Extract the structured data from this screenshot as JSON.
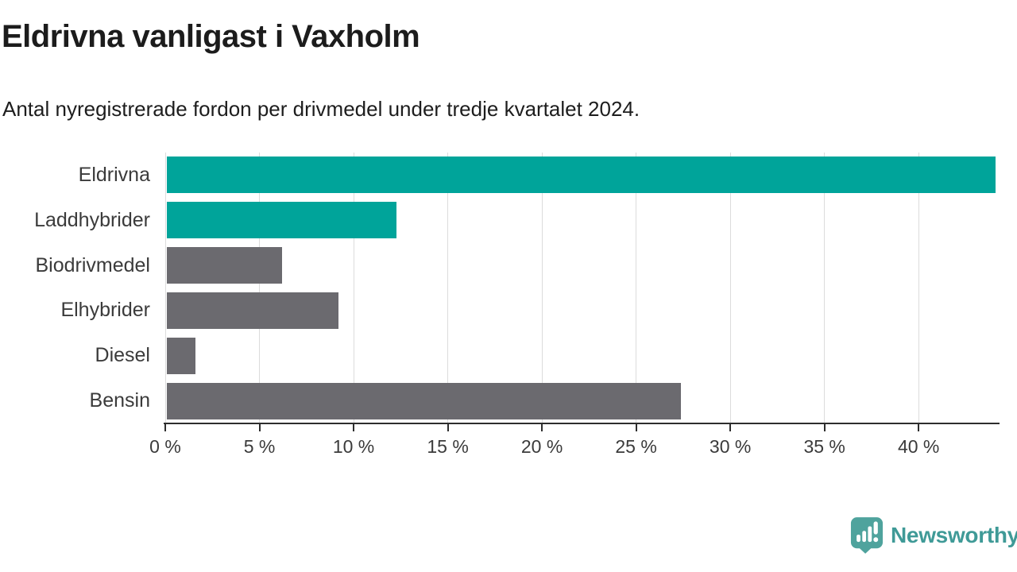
{
  "header": {
    "title": "Eldrivna vanligast i Vaxholm",
    "subtitle": "Antal nyregistrerade fordon per drivmedel under tredje kvartalet 2024."
  },
  "chart_data": {
    "type": "bar",
    "orientation": "horizontal",
    "title": "Eldrivna vanligast i Vaxholm",
    "subtitle": "Antal nyregistrerade fordon per drivmedel under tredje kvartalet 2024.",
    "categories": [
      "Eldrivna",
      "Laddhybrider",
      "Biodrivmedel",
      "Elhybrider",
      "Diesel",
      "Bensin"
    ],
    "values": [
      44.0,
      12.2,
      6.1,
      9.1,
      1.5,
      27.3
    ],
    "unit": "%",
    "xlim": [
      0,
      44
    ],
    "xticks": [
      0,
      5,
      10,
      15,
      20,
      25,
      30,
      35,
      40
    ],
    "xtick_labels": [
      "0 %",
      "5 %",
      "10 %",
      "15 %",
      "20 %",
      "25 %",
      "30 %",
      "35 %",
      "40 %"
    ],
    "grid": true,
    "legend": "none",
    "colors": {
      "highlight": "#00A49A",
      "default": "#6B6A6F",
      "gridline": "#dcdcdc",
      "axis": "#2d2d2d"
    },
    "bar_colors": [
      "#00A49A",
      "#00A49A",
      "#6B6A6F",
      "#6B6A6F",
      "#6B6A6F",
      "#6B6A6F"
    ]
  },
  "footer": {
    "brand": "Newsworthy",
    "brand_color": "#3f9a97",
    "icon": "speech-bubble-bar-chart-icon"
  }
}
